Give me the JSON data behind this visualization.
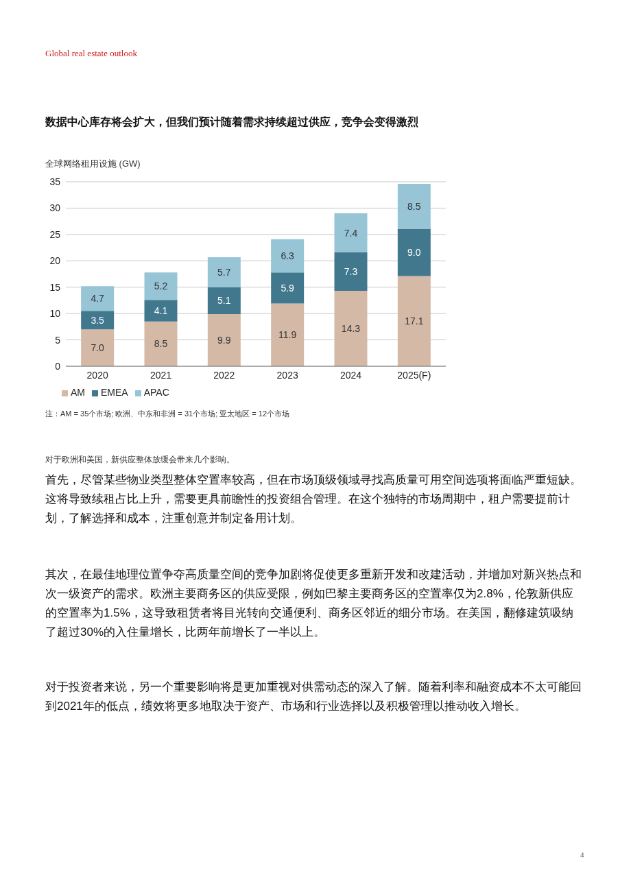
{
  "chart_data": {
    "type": "bar",
    "title": "数据中心库存将会扩大，但我们预计随着需求持续超过供应，竞争会变得激烈",
    "ylabel": "全球网络租用设施 (GW)",
    "categories": [
      "2020",
      "2021",
      "2022",
      "2023",
      "2024",
      "2025(F)"
    ],
    "stacked": true,
    "series": [
      {
        "name": "AM",
        "color": "#d4b9a7",
        "values": [
          7.0,
          8.5,
          9.9,
          11.9,
          14.3,
          17.1
        ],
        "value_labels": [
          "7.0",
          "8.5",
          "9.9",
          "11.9",
          "14.3",
          "17.1"
        ]
      },
      {
        "name": "EMEA",
        "color": "#42788e",
        "values": [
          3.5,
          4.1,
          5.1,
          5.9,
          7.3,
          9.0
        ],
        "value_labels": [
          "3.5",
          "4.1",
          "5.1",
          "5.9",
          "7.3",
          "9.0"
        ]
      },
      {
        "name": "APAC",
        "color": "#97c5d6",
        "values": [
          4.7,
          5.2,
          5.7,
          6.3,
          7.4,
          8.5
        ],
        "value_labels": [
          "4.7",
          "5.2",
          "5.7",
          "6.3",
          "7.4",
          "8.5"
        ]
      }
    ],
    "ylim": [
      0,
      35
    ],
    "yticks": [
      0,
      5,
      10,
      15,
      20,
      25,
      30,
      35
    ],
    "grid": "y",
    "legend": "bottom",
    "annotations": [
      "Global real estate outlook",
      "注：AM = 35个市场; 欧洲、中东和非洲 = 31个市场; 亚太地区 = 12个市场",
      "对于欧洲和美国，新供应整体放缓会带来几个影响。",
      "首先，尽管某些物业类型整体空置率较高，但在市场顶级领域寻找高质量可用空间选项将面临严重短缺。这将导致续租占比上升，需要更具前瞻性的投资组合管理。在这个独特的市场周期中，租户需要提前计划，了解选择和成本，注重创意并制定备用计划。",
      "其次，在最佳地理位置争夺高质量空间的竞争加剧将促使更多重新开发和改建活动，并增加对新兴热点和次一级资产的需求。欧洲主要商务区的供应受限，例如巴黎主要商务区的空置率仅为2.8%，伦敦新供应的空置率为1.5%，这导致租赁者将目光转向交通便利、商务区邻近的细分市场。在美国，翻修建筑吸纳了超过30%的入住量增长，比两年前增长了一半以上。",
      "对于投资者来说，另一个重要影响将是更加重视对供需动态的深入了解。随着利率和融资成本不太可能回到2021年的低点，绩效将更多地取决于资产、市场和行业选择以及积极管理以推动收入增长。",
      "4"
    ]
  }
}
